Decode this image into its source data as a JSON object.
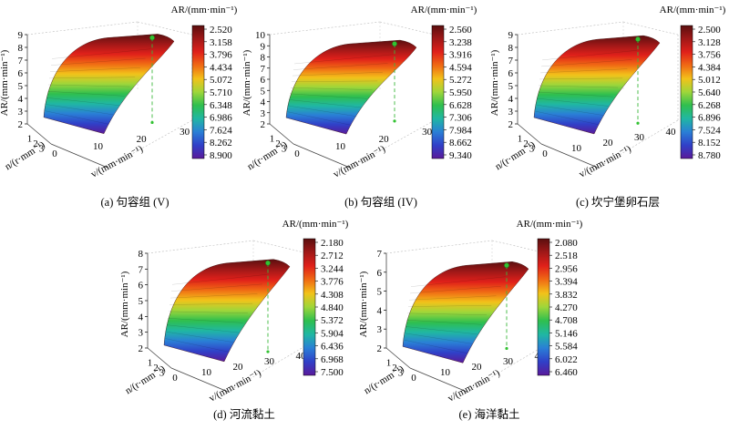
{
  "figure": {
    "colormap": [
      "#5b0f0f",
      "#a01818",
      "#e0201a",
      "#f06a14",
      "#f2c21a",
      "#9fd63a",
      "#2fbf4e",
      "#20b7a3",
      "#2a7fd6",
      "#3040c8",
      "#5a1a9a"
    ]
  },
  "chart_data": [
    {
      "type": "surface3d",
      "caption": "(a) 句容组 (V)",
      "colorbar_title": "AR/(mm·min⁻¹)",
      "colorbar_ticks": [
        "2.520",
        "3.158",
        "3.796",
        "4.434",
        "5.072",
        "5.710",
        "6.348",
        "6.986",
        "7.624",
        "8.262",
        "8.900"
      ],
      "z_label": "AR/(mm·min⁻¹)",
      "z_ticks": [
        "2",
        "3",
        "4",
        "5",
        "6",
        "7",
        "8",
        "9"
      ],
      "z_range": [
        2,
        9
      ],
      "x_label": "n/(r·mm⁻¹)",
      "x_ticks": [
        "1",
        "2",
        "3"
      ],
      "y_label": "v/(mm·min⁻¹)",
      "y_ticks": [
        "0",
        "10",
        "20",
        "30"
      ],
      "surface": {
        "z_min": 2.52,
        "z_max": 8.9
      },
      "optimum": {
        "v": 22,
        "z": 8.9
      }
    },
    {
      "type": "surface3d",
      "caption": "(b) 句容组 (IV)",
      "colorbar_title": "AR/(mm·min⁻¹)",
      "colorbar_ticks": [
        "2.560",
        "3.238",
        "3.916",
        "4.594",
        "5.272",
        "5.950",
        "6.628",
        "7.306",
        "7.984",
        "8.662",
        "9.340"
      ],
      "z_label": "AR/(mm·min⁻¹)",
      "z_ticks": [
        "2",
        "3",
        "4",
        "5",
        "6",
        "7",
        "8",
        "9",
        "10"
      ],
      "z_range": [
        2,
        10
      ],
      "x_label": "n/(r·mm⁻¹)",
      "x_ticks": [
        "1",
        "2",
        "3"
      ],
      "y_label": "v/(mm·min⁻¹)",
      "y_ticks": [
        "0",
        "10",
        "20",
        "30"
      ],
      "surface": {
        "z_min": 2.56,
        "z_max": 9.34
      },
      "optimum": {
        "v": 24,
        "z": 9.34
      }
    },
    {
      "type": "surface3d",
      "caption": "(c) 坎宁堡卵石层",
      "colorbar_title": "AR/(mm·min⁻¹)",
      "colorbar_ticks": [
        "2.500",
        "3.128",
        "3.756",
        "4.384",
        "5.012",
        "5.640",
        "6.268",
        "6.896",
        "7.524",
        "8.152",
        "8.780"
      ],
      "z_label": "AR/(mm·min⁻¹)",
      "z_ticks": [
        "2",
        "3",
        "4",
        "5",
        "6",
        "7",
        "8",
        "9"
      ],
      "z_range": [
        2,
        9
      ],
      "x_label": "n/(r·mm⁻¹)",
      "x_ticks": [
        "1",
        "2",
        "3"
      ],
      "y_label": "v/(mm·min⁻¹)",
      "y_ticks": [
        "0",
        "10",
        "20",
        "30",
        "40"
      ],
      "surface": {
        "z_min": 2.5,
        "z_max": 8.78
      },
      "optimum": {
        "v": 28,
        "z": 8.78
      }
    },
    {
      "type": "surface3d",
      "caption": "(d) 河流黏土",
      "colorbar_title": "AR/(mm·min⁻¹)",
      "colorbar_ticks": [
        "2.180",
        "2.712",
        "3.244",
        "3.776",
        "4.308",
        "4.840",
        "5.372",
        "5.904",
        "6.436",
        "6.968",
        "7.500"
      ],
      "z_label": "AR/(mm·min⁻¹)",
      "z_ticks": [
        "2",
        "3",
        "4",
        "5",
        "6",
        "7",
        "8"
      ],
      "z_range": [
        2,
        8
      ],
      "x_label": "n/(r·mm⁻¹)",
      "x_ticks": [
        "1",
        "2",
        "3"
      ],
      "y_label": "v/(mm·min⁻¹)",
      "y_ticks": [
        "0",
        "10",
        "20",
        "30",
        "40"
      ],
      "surface": {
        "z_min": 2.18,
        "z_max": 7.5
      },
      "optimum": {
        "v": 20,
        "z": 7.5
      }
    },
    {
      "type": "surface3d",
      "caption": "(e) 海洋黏土",
      "colorbar_title": "AR/(mm·min⁻¹)",
      "colorbar_ticks": [
        "2.080",
        "2.518",
        "2.956",
        "3.394",
        "3.832",
        "4.270",
        "4.708",
        "5.146",
        "5.584",
        "6.022",
        "6.460"
      ],
      "z_label": "AR/(mm·min⁻¹)",
      "z_ticks": [
        "2",
        "3",
        "4",
        "5",
        "6",
        "7"
      ],
      "z_range": [
        2,
        7
      ],
      "x_label": "n/(r·mm⁻¹)",
      "x_ticks": [
        "1",
        "2",
        "3"
      ],
      "y_label": "v/(mm·min⁻¹)",
      "y_ticks": [
        "0",
        "10",
        "20",
        "30",
        "40"
      ],
      "surface": {
        "z_min": 2.08,
        "z_max": 6.46
      },
      "optimum": {
        "v": 26,
        "z": 6.46
      }
    }
  ]
}
